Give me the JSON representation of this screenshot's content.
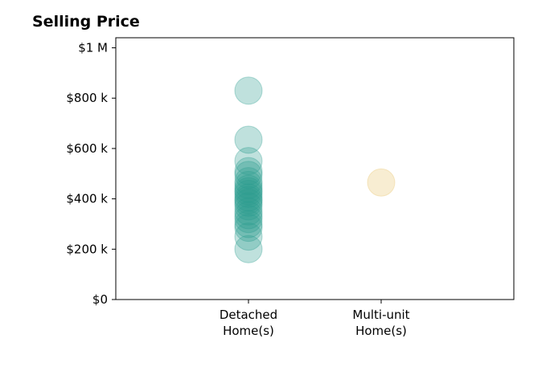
{
  "chart_data": {
    "type": "scatter",
    "title": "Selling Price",
    "categories": [
      "Detached\nHome(s)",
      "Multi-unit\nHome(s)"
    ],
    "y_ticks": [
      {
        "value": 0,
        "label": "$0"
      },
      {
        "value": 200000,
        "label": "$200 k"
      },
      {
        "value": 400000,
        "label": "$400 k"
      },
      {
        "value": 600000,
        "label": "$600 k"
      },
      {
        "value": 800000,
        "label": "$800 k"
      },
      {
        "value": 1000000,
        "label": "$1 M"
      }
    ],
    "ylim": [
      0,
      1040000
    ],
    "grid": false,
    "series": [
      {
        "category_index": 0,
        "color": "#2a9d8f",
        "values": [
          830000,
          635000,
          550000,
          510000,
          495000,
          470000,
          455000,
          440000,
          430000,
          420000,
          405000,
          395000,
          385000,
          370000,
          350000,
          335000,
          320000,
          300000,
          285000,
          250000,
          200000
        ]
      },
      {
        "category_index": 1,
        "color": "#e9c46a",
        "values": [
          465000
        ]
      }
    ]
  }
}
